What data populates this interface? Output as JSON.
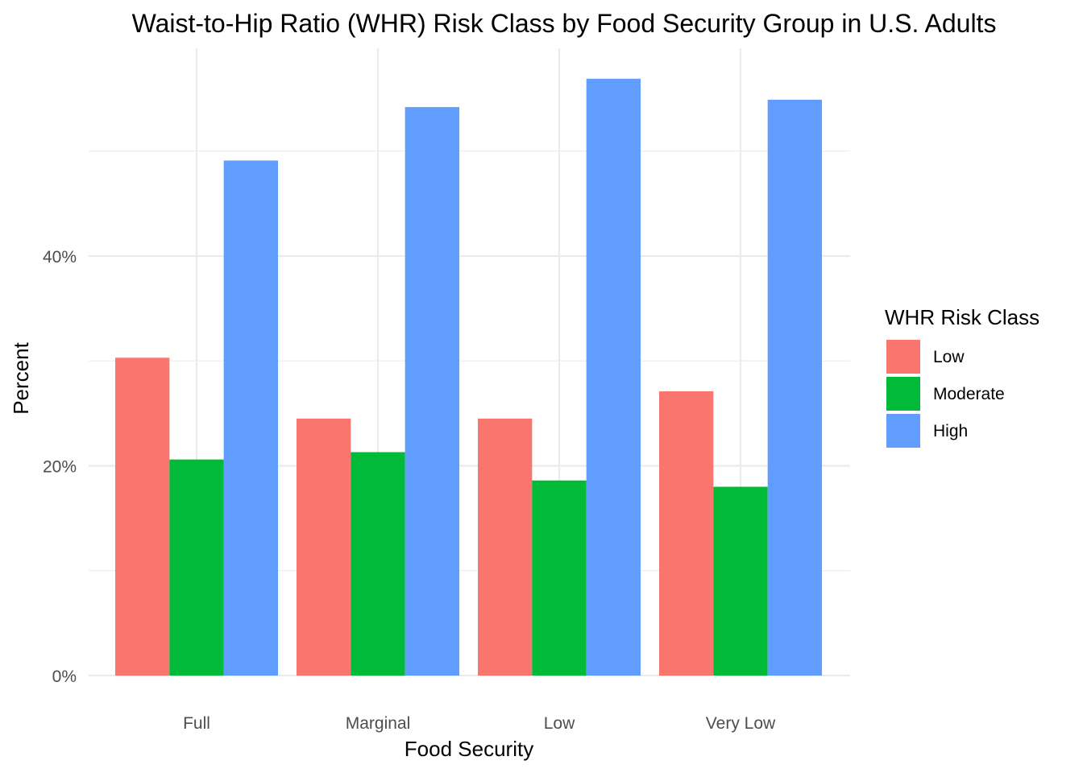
{
  "chart_data": {
    "type": "bar",
    "title": "Waist-to-Hip Ratio (WHR) Risk Class by Food Security Group in U.S. Adults",
    "xlabel": "Food Security",
    "ylabel": "Percent",
    "categories": [
      "Full",
      "Marginal",
      "Low",
      "Very Low"
    ],
    "series": [
      {
        "name": "Low",
        "color": "#F8766D",
        "values": [
          30.3,
          24.5,
          24.5,
          27.1
        ]
      },
      {
        "name": "Moderate",
        "color": "#00BA38",
        "values": [
          20.6,
          21.3,
          18.6,
          18.0
        ]
      },
      {
        "name": "High",
        "color": "#619CFF",
        "values": [
          49.1,
          54.2,
          56.9,
          54.9
        ]
      }
    ],
    "ylim": [
      0,
      59.8
    ],
    "y_ticks": [
      {
        "value": 0,
        "label": "0%"
      },
      {
        "value": 20,
        "label": "20%"
      },
      {
        "value": 40,
        "label": "40%"
      }
    ],
    "y_minor_ticks": [
      10,
      30,
      50
    ],
    "grid": true,
    "legend": {
      "title": "WHR Risk Class",
      "position": "right"
    }
  }
}
